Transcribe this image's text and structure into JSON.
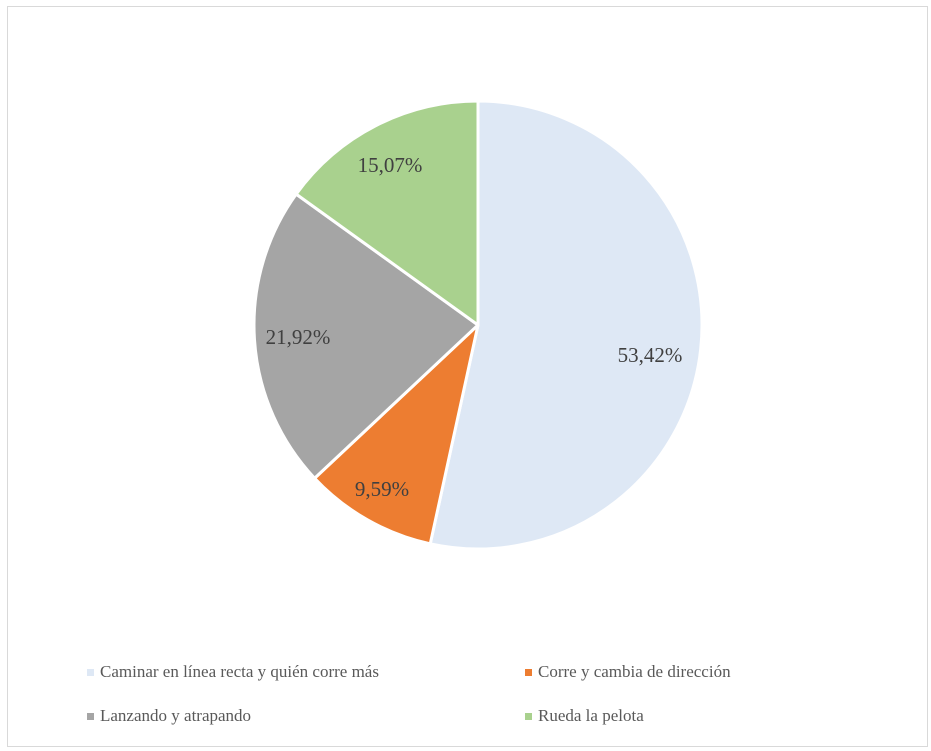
{
  "chart_data": {
    "type": "pie",
    "categories": [
      "Caminar en línea recta y quién corre más",
      "Corre y cambia de dirección",
      "Lanzando y atrapando",
      "Rueda la pelota"
    ],
    "values": [
      53.42,
      9.59,
      21.92,
      15.07
    ],
    "data_labels": [
      "53,42%",
      "9,59%",
      "21,92%",
      "15,07%"
    ],
    "colors": [
      "#dee8f5",
      "#ed7d31",
      "#a5a5a5",
      "#a9d18e"
    ],
    "title": "",
    "legend_position": "bottom",
    "start_angle": "12-o'clock",
    "direction": "clockwise"
  }
}
